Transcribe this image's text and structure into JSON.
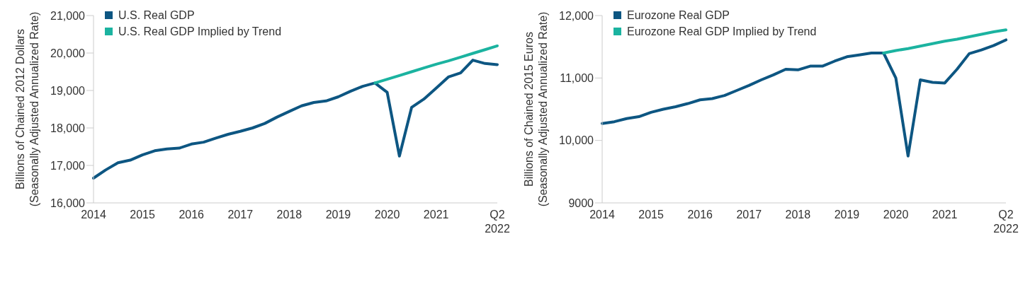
{
  "chart_data": [
    {
      "type": "line",
      "ylabel": "Billions of Chained 2012 Dollars\n(Seasonally Adjusted Annualized Rate)",
      "categories": [
        "2014",
        null,
        null,
        null,
        "2015",
        null,
        null,
        null,
        "2016",
        null,
        null,
        null,
        "2017",
        null,
        null,
        null,
        "2018",
        null,
        null,
        null,
        "2019",
        null,
        null,
        null,
        "2020",
        null,
        null,
        null,
        "2021",
        null,
        null,
        null,
        null,
        "Q2\n2022"
      ],
      "series": [
        {
          "name": "U.S. Real GDP",
          "color": "#0d5682",
          "values": [
            16660,
            16880,
            17070,
            17140,
            17280,
            17390,
            17440,
            17460,
            17570,
            17620,
            17730,
            17830,
            17910,
            18000,
            18120,
            18290,
            18440,
            18590,
            18680,
            18720,
            18830,
            18980,
            19110,
            19200,
            18950,
            17250,
            18550,
            18770,
            19060,
            19360,
            19470,
            19810,
            19720,
            19690
          ]
        },
        {
          "name": "U.S. Real GDP Implied by Trend",
          "color": "#1bb3a0",
          "values": [
            null,
            null,
            null,
            null,
            null,
            null,
            null,
            null,
            null,
            null,
            null,
            null,
            null,
            null,
            null,
            null,
            null,
            null,
            null,
            null,
            null,
            null,
            null,
            19200,
            19300,
            19400,
            19500,
            19600,
            19700,
            19790,
            19890,
            19990,
            20090,
            20190
          ]
        }
      ],
      "ylim": [
        16000,
        21000
      ],
      "yticks": [
        {
          "value": 16000,
          "label": "16,000"
        },
        {
          "value": 17000,
          "label": "17,000"
        },
        {
          "value": 18000,
          "label": "18,000"
        },
        {
          "value": 19000,
          "label": "19,000"
        },
        {
          "value": 20000,
          "label": "20,000"
        },
        {
          "value": 21000,
          "label": "21,000"
        }
      ],
      "legend": "top left",
      "marker": "none",
      "line_style": "solid"
    },
    {
      "type": "line",
      "ylabel": "Billions of Chained 2015 Euros\n(Seasonally Adjusted Annualized Rate)",
      "categories": [
        "2014",
        null,
        null,
        null,
        "2015",
        null,
        null,
        null,
        "2016",
        null,
        null,
        null,
        "2017",
        null,
        null,
        null,
        "2018",
        null,
        null,
        null,
        "2019",
        null,
        null,
        null,
        "2020",
        null,
        null,
        null,
        "2021",
        null,
        null,
        null,
        null,
        "Q2\n2022"
      ],
      "series": [
        {
          "name": "Eurozone Real GDP",
          "color": "#0d5682",
          "values": [
            10270,
            10300,
            10350,
            10380,
            10450,
            10500,
            10540,
            10590,
            10650,
            10670,
            10720,
            10800,
            10880,
            10970,
            11050,
            11140,
            11130,
            11190,
            11190,
            11270,
            11340,
            11370,
            11400,
            11400,
            11000,
            9750,
            10970,
            10930,
            10920,
            11140,
            11390,
            11450,
            11520,
            11610
          ]
        },
        {
          "name": "Eurozone Real GDP Implied by Trend",
          "color": "#1bb3a0",
          "values": [
            null,
            null,
            null,
            null,
            null,
            null,
            null,
            null,
            null,
            null,
            null,
            null,
            null,
            null,
            null,
            null,
            null,
            null,
            null,
            null,
            null,
            null,
            null,
            11400,
            11440,
            11470,
            11510,
            11550,
            11590,
            11620,
            11660,
            11700,
            11740,
            11770
          ]
        }
      ],
      "ylim": [
        9000,
        12000
      ],
      "yticks": [
        9000,
        {
          "value": 10000,
          "label": "10,000"
        },
        {
          "value": 11000,
          "label": "11,000"
        },
        {
          "value": 12000,
          "label": "12,000"
        }
      ],
      "legend": "top left",
      "marker": "none",
      "line_style": "solid"
    }
  ]
}
